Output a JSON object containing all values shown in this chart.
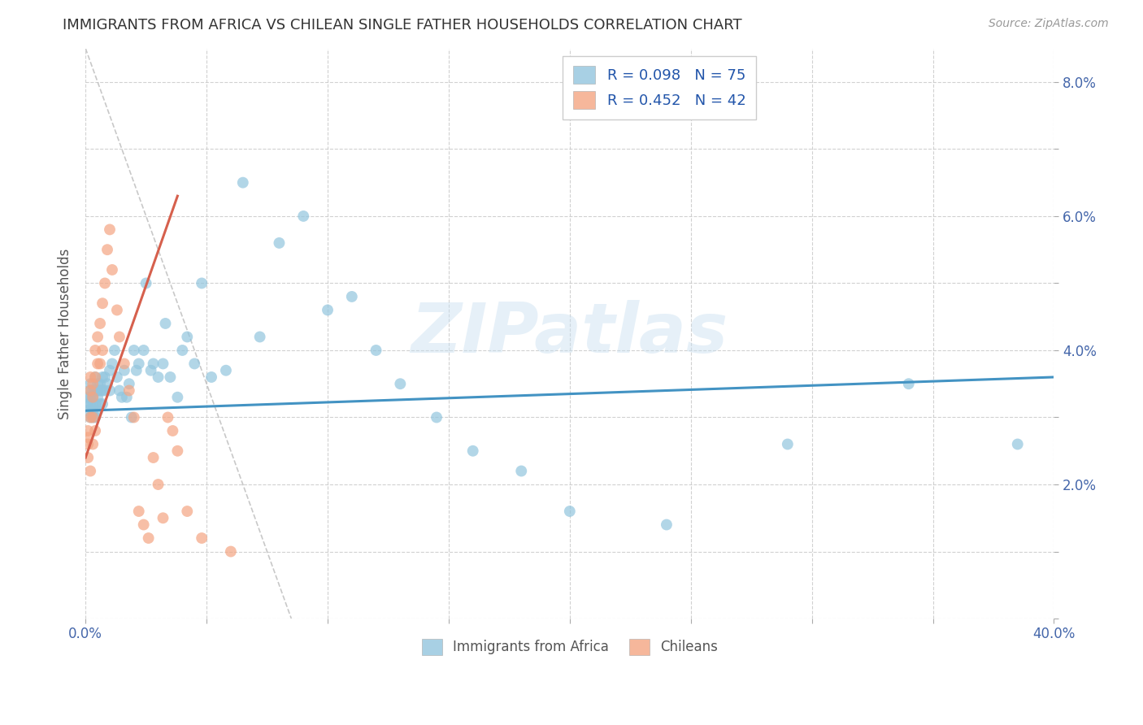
{
  "title": "IMMIGRANTS FROM AFRICA VS CHILEAN SINGLE FATHER HOUSEHOLDS CORRELATION CHART",
  "source": "Source: ZipAtlas.com",
  "ylabel": "Single Father Households",
  "xlim": [
    0.0,
    0.4
  ],
  "ylim": [
    0.0,
    0.085
  ],
  "xticks": [
    0.0,
    0.05,
    0.1,
    0.15,
    0.2,
    0.25,
    0.3,
    0.35,
    0.4
  ],
  "xtick_labels": [
    "0.0%",
    "",
    "",
    "",
    "",
    "",
    "",
    "",
    "40.0%"
  ],
  "yticks": [
    0.0,
    0.01,
    0.02,
    0.03,
    0.04,
    0.05,
    0.06,
    0.07,
    0.08
  ],
  "ytick_labels_right": [
    "",
    "",
    "2.0%",
    "",
    "4.0%",
    "",
    "6.0%",
    "",
    "8.0%"
  ],
  "legend1_label": "R = 0.098   N = 75",
  "legend2_label": "R = 0.452   N = 42",
  "legend_label1_bottom": "Immigrants from Africa",
  "legend_label2_bottom": "Chileans",
  "blue_color": "#92c5de",
  "pink_color": "#f4a582",
  "blue_line_color": "#4393c3",
  "pink_line_color": "#d6604d",
  "diag_line_color": "#bbbbbb",
  "watermark_text": "ZIPatlas",
  "blue_scatter_x": [
    0.001,
    0.001,
    0.001,
    0.002,
    0.002,
    0.002,
    0.002,
    0.002,
    0.003,
    0.003,
    0.003,
    0.003,
    0.003,
    0.004,
    0.004,
    0.004,
    0.004,
    0.005,
    0.005,
    0.005,
    0.005,
    0.006,
    0.006,
    0.006,
    0.007,
    0.007,
    0.007,
    0.008,
    0.008,
    0.009,
    0.01,
    0.01,
    0.011,
    0.012,
    0.013,
    0.014,
    0.015,
    0.016,
    0.017,
    0.018,
    0.019,
    0.02,
    0.021,
    0.022,
    0.024,
    0.025,
    0.027,
    0.028,
    0.03,
    0.032,
    0.033,
    0.035,
    0.038,
    0.04,
    0.042,
    0.045,
    0.048,
    0.052,
    0.058,
    0.065,
    0.072,
    0.08,
    0.09,
    0.1,
    0.11,
    0.12,
    0.13,
    0.145,
    0.16,
    0.18,
    0.2,
    0.24,
    0.29,
    0.34,
    0.385
  ],
  "blue_scatter_y": [
    0.033,
    0.032,
    0.031,
    0.035,
    0.034,
    0.033,
    0.032,
    0.03,
    0.034,
    0.033,
    0.032,
    0.031,
    0.03,
    0.036,
    0.034,
    0.032,
    0.03,
    0.035,
    0.034,
    0.033,
    0.031,
    0.035,
    0.034,
    0.032,
    0.036,
    0.034,
    0.032,
    0.036,
    0.034,
    0.035,
    0.037,
    0.034,
    0.038,
    0.04,
    0.036,
    0.034,
    0.033,
    0.037,
    0.033,
    0.035,
    0.03,
    0.04,
    0.037,
    0.038,
    0.04,
    0.05,
    0.037,
    0.038,
    0.036,
    0.038,
    0.044,
    0.036,
    0.033,
    0.04,
    0.042,
    0.038,
    0.05,
    0.036,
    0.037,
    0.065,
    0.042,
    0.056,
    0.06,
    0.046,
    0.048,
    0.04,
    0.035,
    0.03,
    0.025,
    0.022,
    0.016,
    0.014,
    0.026,
    0.035,
    0.026
  ],
  "pink_scatter_x": [
    0.001,
    0.001,
    0.001,
    0.001,
    0.002,
    0.002,
    0.002,
    0.002,
    0.003,
    0.003,
    0.003,
    0.003,
    0.004,
    0.004,
    0.004,
    0.005,
    0.005,
    0.006,
    0.006,
    0.007,
    0.007,
    0.008,
    0.009,
    0.01,
    0.011,
    0.013,
    0.014,
    0.016,
    0.018,
    0.02,
    0.022,
    0.024,
    0.026,
    0.028,
    0.03,
    0.032,
    0.034,
    0.036,
    0.038,
    0.042,
    0.048,
    0.06
  ],
  "pink_scatter_y": [
    0.028,
    0.027,
    0.026,
    0.024,
    0.036,
    0.034,
    0.03,
    0.022,
    0.035,
    0.033,
    0.03,
    0.026,
    0.04,
    0.036,
    0.028,
    0.042,
    0.038,
    0.044,
    0.038,
    0.047,
    0.04,
    0.05,
    0.055,
    0.058,
    0.052,
    0.046,
    0.042,
    0.038,
    0.034,
    0.03,
    0.016,
    0.014,
    0.012,
    0.024,
    0.02,
    0.015,
    0.03,
    0.028,
    0.025,
    0.016,
    0.012,
    0.01
  ],
  "blue_line_x": [
    0.0,
    0.4
  ],
  "blue_line_y": [
    0.031,
    0.036
  ],
  "pink_line_x": [
    0.0,
    0.038
  ],
  "pink_line_y": [
    0.024,
    0.063
  ],
  "diag_line_x": [
    0.0,
    0.085
  ],
  "diag_line_y": [
    0.085,
    0.0
  ]
}
